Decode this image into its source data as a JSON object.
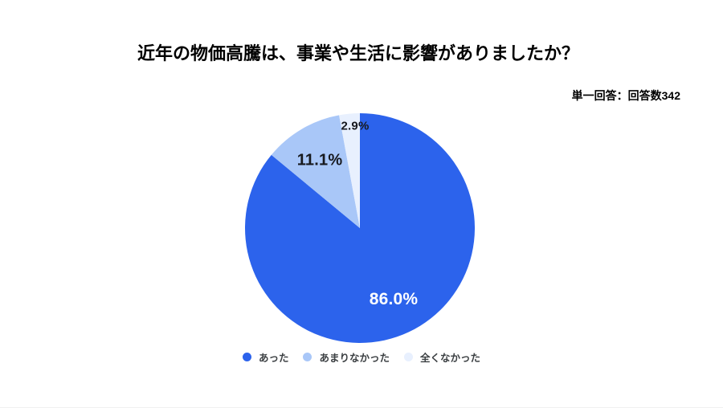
{
  "chart_data": {
    "type": "pie",
    "title": "近年の物価高騰は、事業や生活に影響がありましたか？",
    "subtitle_note": "単一回答：回答数342",
    "respondents_count": "342",
    "direction": "clockwise",
    "start_angle_deg": 0,
    "legend_position": "bottom",
    "background_color": "#ffffff",
    "series": [
      {
        "name": "あった",
        "value": 86.0,
        "label": "86.0%",
        "color": "#2c63ec",
        "label_color": "#ffffff"
      },
      {
        "name": "あまりなかった",
        "value": 11.1,
        "label": "11.1%",
        "color": "#a9c7f8",
        "label_color": "#17191e"
      },
      {
        "name": "全くなかった",
        "value": 2.9,
        "label": "2.9%",
        "color": "#e8f0fe",
        "label_color": "#17191e"
      }
    ]
  }
}
